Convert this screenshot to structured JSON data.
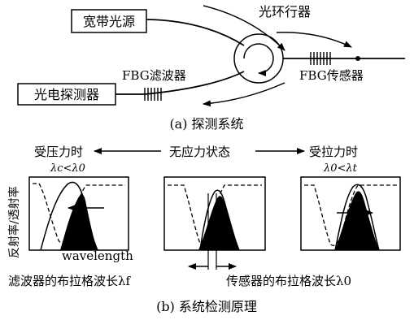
{
  "part_a": {
    "source_label": "宽带光源",
    "circulator_label": "光环行器",
    "detector_label": "光电探测器",
    "fbg_filter_label": "FBG滤波器",
    "fbg_sensor_label": "FBG传感器",
    "caption": "(a) 探测系统"
  },
  "part_b": {
    "compress_label": "受压力时",
    "compress_condition": "λc<λ0",
    "nostress_label": "无应力状态",
    "tension_label": "受拉力时",
    "tension_condition": "λ0<λt",
    "yaxis_label": "反射率/透射率",
    "xaxis_label": "wavelength",
    "filter_wavelength_label": "滤波器的布拉格波长λf",
    "sensor_wavelength_label": "传感器的布拉格波长λ0",
    "caption": "(b) 系统检测原理"
  }
}
